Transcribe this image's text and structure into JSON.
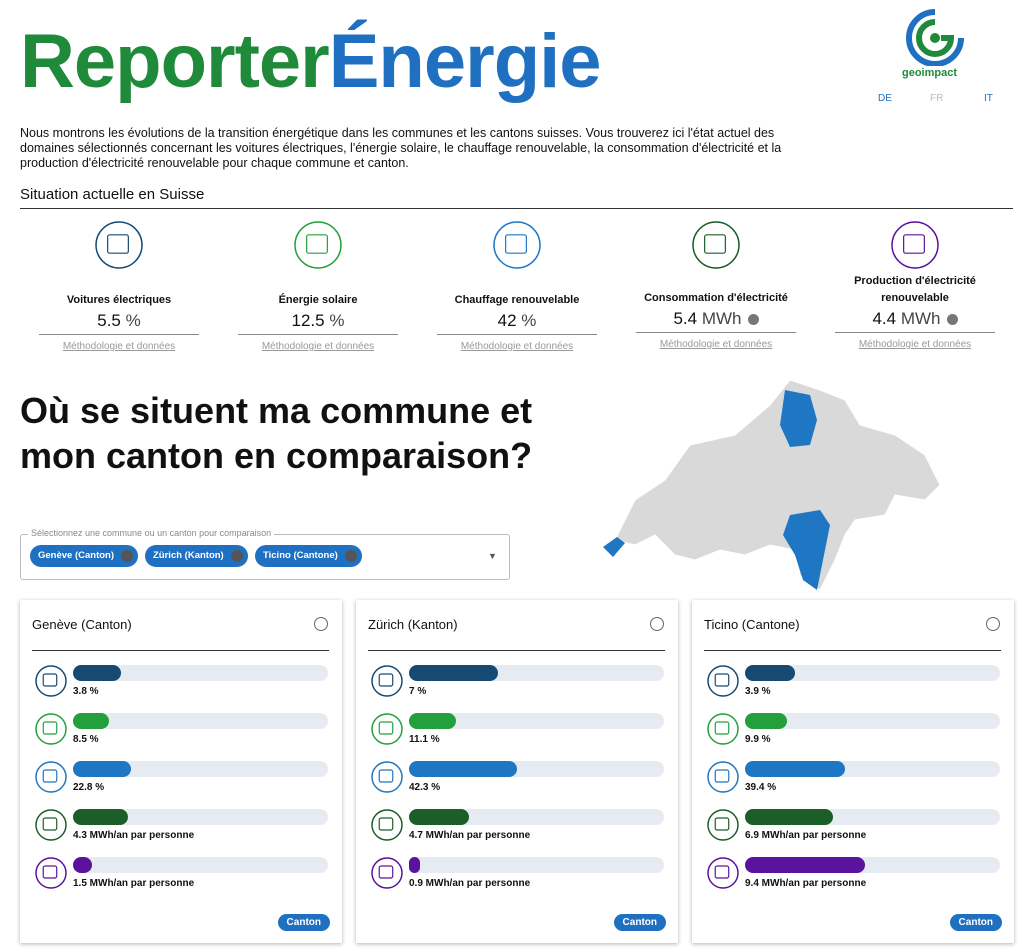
{
  "header": {
    "title_green": "Reporter",
    "title_blue": "Énergie",
    "logo": "geoimpact",
    "languages": [
      "DE",
      "FR",
      "IT"
    ]
  },
  "intro": "Nous montrons les évolutions de la transition énergétique dans les communes et les cantons suisses. Vous trouverez ici l'état actuel des domaines sélectionnés concernant les voitures électriques, l'énergie solaire, le chauffage renouvelable, la consommation d'électricité et la production d'électricité renouvelable pour chaque commune et canton.",
  "summary": {
    "title": "Situation actuelle en Suisse",
    "methodology_link": "Méthodologie et données",
    "items": [
      {
        "label": "Voitures électriques",
        "value": 5.5,
        "unit": "%"
      },
      {
        "label": "Énergie solaire",
        "value": 12.5,
        "unit": "%"
      },
      {
        "label": "Chauffage renouvelable",
        "value": 42,
        "unit": "%"
      },
      {
        "label": "Consommation d'électricité",
        "value": 5.4,
        "unit": "MWh"
      },
      {
        "label": "Production d'électricité renouvelable",
        "value": 4.4,
        "unit": "MWh"
      }
    ]
  },
  "comparison": {
    "title": "Où se situent ma commune et mon canton en comparaison?",
    "select_label": "Sélectionnez une commune ou un canton pour comparaison",
    "chips": [
      "Genève (Canton)",
      "Zürich (Kanton)",
      "Ticino (Cantone)"
    ],
    "indicators": [
      {
        "color": "#174a72",
        "xlim": [
          0,
          20
        ]
      },
      {
        "color": "#23a03b",
        "xlim": [
          0,
          60
        ]
      },
      {
        "color": "#1f76c2",
        "xlim": [
          0,
          100
        ]
      },
      {
        "color": "#1b5e27",
        "xlim": [
          0,
          20
        ]
      },
      {
        "color": "#5a139c",
        "xlim": [
          0,
          20
        ]
      }
    ],
    "cards": [
      {
        "name": "Genève (Canton)",
        "values": [
          3.8,
          8.5,
          22.8,
          4.3,
          1.5
        ],
        "value_labels": [
          "3.8 %",
          "8.5 %",
          "22.8 %",
          "4.3 MWh/an par personne",
          "1.5 MWh/an par personne"
        ],
        "button": "Canton"
      },
      {
        "name": "Zürich (Kanton)",
        "values": [
          7,
          11.1,
          42.3,
          4.7,
          0.9
        ],
        "value_labels": [
          "7 %",
          "11.1 %",
          "42.3 %",
          "4.7 MWh/an par personne",
          "0.9 MWh/an par personne"
        ],
        "button": "Canton"
      },
      {
        "name": "Ticino (Cantone)",
        "values": [
          3.9,
          9.9,
          39.4,
          6.9,
          9.4
        ],
        "value_labels": [
          "3.9 %",
          "9.9 %",
          "39.4 %",
          "6.9 MWh/an par personne",
          "9.4 MWh/an par personne"
        ],
        "button": "Canton"
      }
    ]
  }
}
